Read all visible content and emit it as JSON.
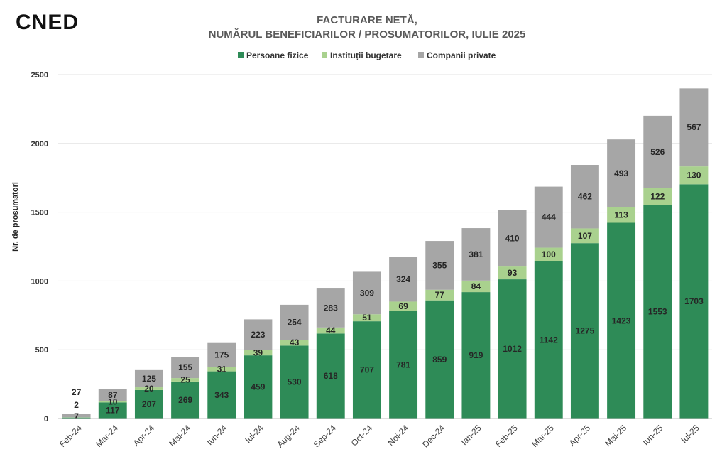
{
  "logo": {
    "text": "CNED"
  },
  "chart_data": {
    "type": "bar",
    "stacked": true,
    "title": [
      "FACTURARE NETĂ,",
      "NUMĂRUL BENEFICIARILOR / PROSUMATORILOR, IULIE 2025"
    ],
    "ylabel": "Nr. de prosumatori",
    "xlabel": "",
    "ylim": [
      0,
      2500
    ],
    "yticks": [
      0,
      500,
      1000,
      1500,
      2000,
      2500
    ],
    "grid": true,
    "legend_position": "top-center",
    "categories": [
      "Feb-24",
      "Mar-24",
      "Apr-24",
      "Mai-24",
      "Iun-24",
      "Iul-24",
      "Aug-24",
      "Sep-24",
      "Oct-24",
      "Noi-24",
      "Dec-24",
      "Ian-25",
      "Feb-25",
      "Mar-25",
      "Apr-25",
      "Mai-25",
      "Iun-25",
      "Iul-25"
    ],
    "series": [
      {
        "name": "Persoane fizice",
        "color": "#2e8b57",
        "values": [
          7,
          117,
          207,
          269,
          343,
          459,
          530,
          618,
          707,
          781,
          859,
          919,
          1012,
          1142,
          1275,
          1423,
          1553,
          1703
        ]
      },
      {
        "name": "Instituții bugetare",
        "color": "#a9d18e",
        "values": [
          2,
          10,
          20,
          25,
          31,
          39,
          43,
          44,
          51,
          69,
          77,
          84,
          93,
          100,
          107,
          113,
          122,
          130
        ]
      },
      {
        "name": "Companii private",
        "color": "#a6a6a6",
        "values": [
          27,
          87,
          125,
          155,
          175,
          223,
          254,
          283,
          309,
          324,
          355,
          381,
          410,
          444,
          462,
          493,
          526,
          567
        ]
      }
    ]
  }
}
